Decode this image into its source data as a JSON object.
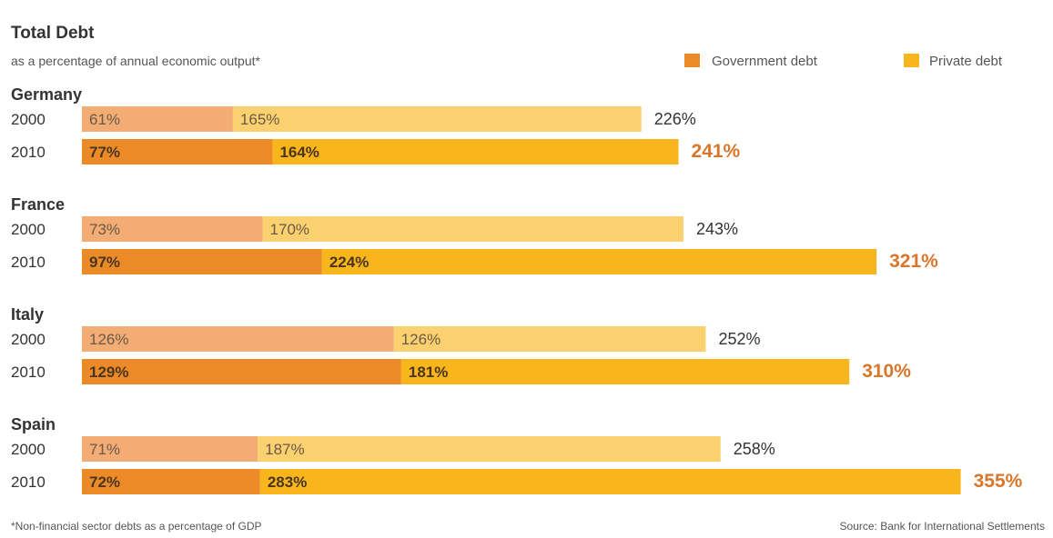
{
  "chart_data": {
    "type": "bar",
    "stacked": true,
    "orientation": "horizontal",
    "title": "Total Debt",
    "subtitle": "as a percentage of annual economic output*",
    "legend": {
      "placement": "top-right",
      "items": [
        {
          "label": "Government debt",
          "color": "#ec8a28"
        },
        {
          "label": "Private debt",
          "color": "#f8b51c"
        }
      ]
    },
    "colors": {
      "gov_2000": "#f2ac74",
      "priv_2000": "#fbd06f",
      "gov_2010": "#ec8a28",
      "priv_2010": "#f8b51c",
      "total_2010": "#d9762a",
      "text": "#333333"
    },
    "groups": [
      {
        "country": "Germany",
        "rows": [
          {
            "year": "2000",
            "government": 61,
            "private": 165,
            "total": 226,
            "government_label": "61%",
            "private_label": "165%",
            "total_label": "226%"
          },
          {
            "year": "2010",
            "government": 77,
            "private": 164,
            "total": 241,
            "government_label": "77%",
            "private_label": "164%",
            "total_label": "241%"
          }
        ]
      },
      {
        "country": "France",
        "rows": [
          {
            "year": "2000",
            "government": 73,
            "private": 170,
            "total": 243,
            "government_label": "73%",
            "private_label": "170%",
            "total_label": "243%"
          },
          {
            "year": "2010",
            "government": 97,
            "private": 224,
            "total": 321,
            "government_label": "97%",
            "private_label": "224%",
            "total_label": "321%"
          }
        ]
      },
      {
        "country": "Italy",
        "rows": [
          {
            "year": "2000",
            "government": 126,
            "private": 126,
            "total": 252,
            "government_label": "126%",
            "private_label": "126%",
            "total_label": "252%"
          },
          {
            "year": "2010",
            "government": 129,
            "private": 181,
            "total": 310,
            "government_label": "129%",
            "private_label": "181%",
            "total_label": "310%"
          }
        ]
      },
      {
        "country": "Spain",
        "rows": [
          {
            "year": "2000",
            "government": 71,
            "private": 187,
            "total": 258,
            "government_label": "71%",
            "private_label": "187%",
            "total_label": "258%"
          },
          {
            "year": "2010",
            "government": 72,
            "private": 283,
            "total": 355,
            "government_label": "72%",
            "private_label": "283%",
            "total_label": "355%"
          }
        ]
      }
    ],
    "footnote": "*Non-financial sector debts as a percentage of GDP",
    "source": "Source: Bank for International Settlements"
  }
}
